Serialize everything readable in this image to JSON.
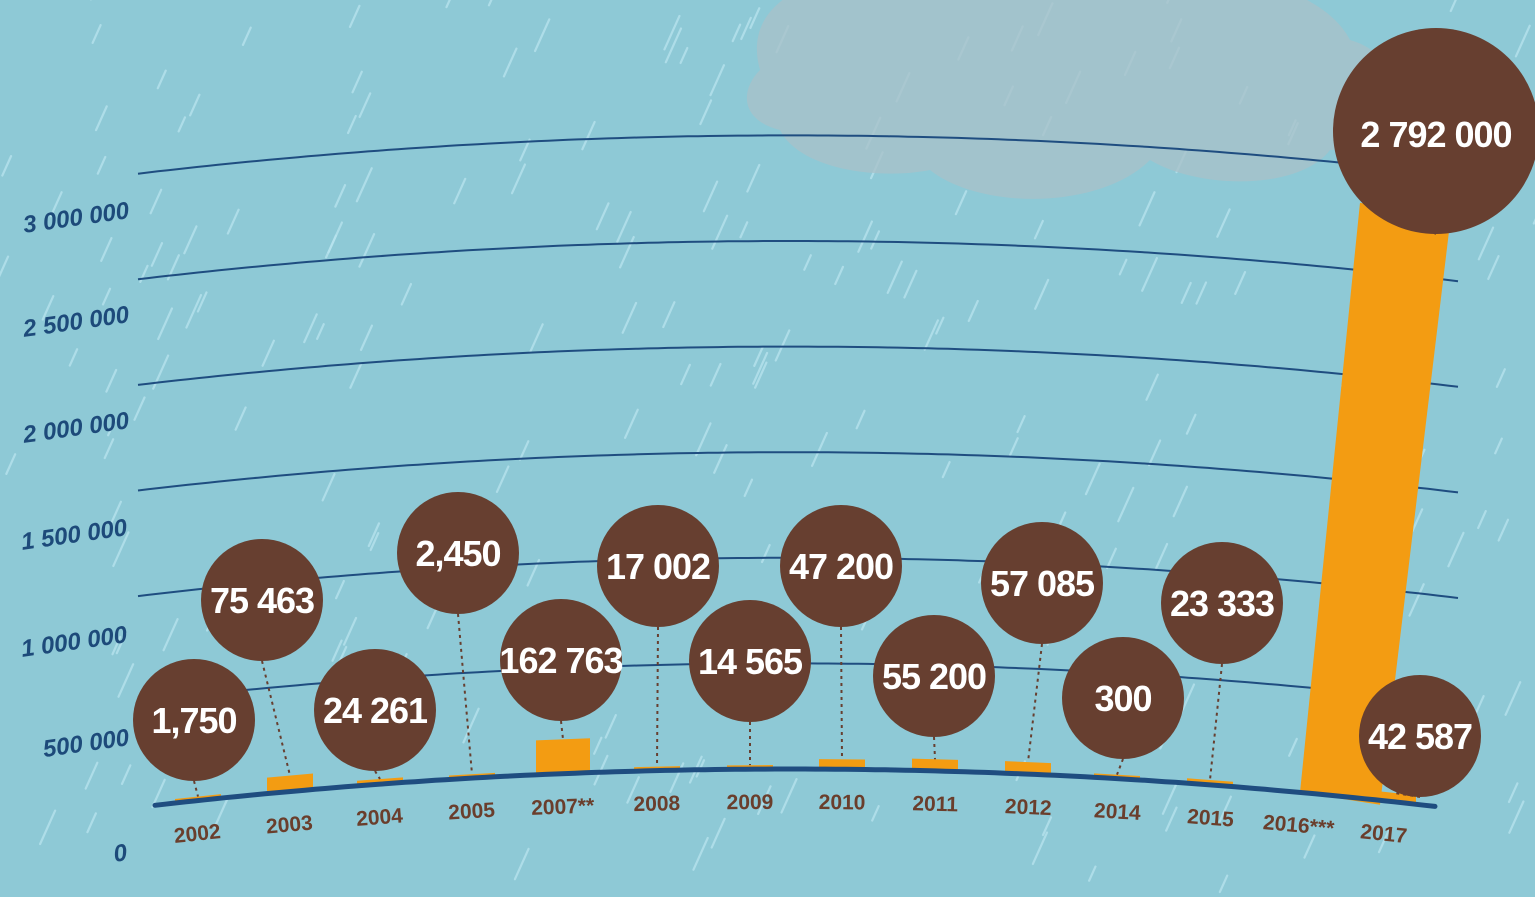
{
  "chart_data": {
    "type": "bar",
    "title": "",
    "xlabel": "",
    "ylabel": "",
    "ylim": [
      0,
      3000000
    ],
    "y_ticks": [
      "0",
      "500 000",
      "1 000 000",
      "1 500 000",
      "2 000 000",
      "2 500 000",
      "3 000 000"
    ],
    "y_tick_values": [
      0,
      500000,
      1000000,
      1500000,
      2000000,
      2500000,
      3000000
    ],
    "categories": [
      "2002",
      "2003",
      "2004",
      "2005",
      "2007**",
      "2008",
      "2009",
      "2010",
      "2011",
      "2012",
      "2014",
      "2015",
      "2016***",
      "2017"
    ],
    "values": [
      1750,
      75463,
      24261,
      2450,
      162763,
      17002,
      14565,
      47200,
      55200,
      57085,
      300,
      23333,
      2792000,
      42587
    ],
    "labels": [
      "1,750",
      "75 463",
      "24 261",
      "2,450",
      "162 763",
      "17 002",
      "14 565",
      "47 200",
      "55 200",
      "57 085",
      "300",
      "23 333",
      "2 792 000",
      "42 587"
    ],
    "grid": true,
    "legend": "none",
    "colors": {
      "background": "#8ec9d6",
      "bar": "#f39c12",
      "bubble": "#673f30",
      "bubble_text": "#ffffff",
      "gridline": "#1f4d80",
      "axis_text": "#1d4a7a",
      "category_text": "#6a3e2c",
      "cloud": "#a7c2c9",
      "rain": "#b9e4ef"
    }
  }
}
